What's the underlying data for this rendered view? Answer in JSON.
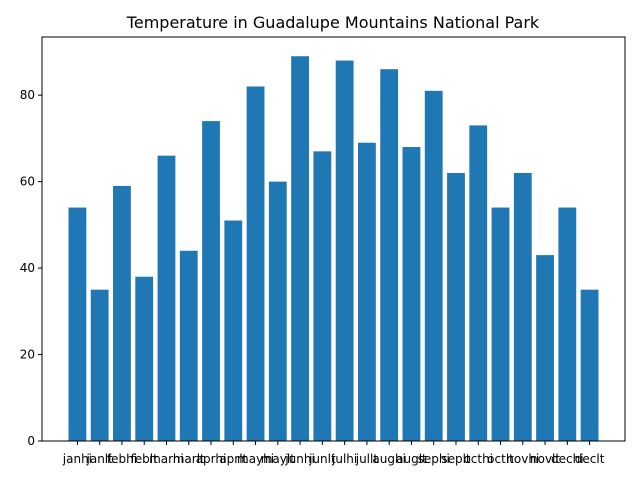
{
  "chart_data": {
    "type": "bar",
    "title": "Temperature in Guadalupe Mountains National Park",
    "xlabel": "",
    "ylabel": "",
    "categories": [
      "janhi",
      "janlt",
      "febhi",
      "feblt",
      "marhi",
      "marlt",
      "aprhi",
      "aprlt",
      "mayhi",
      "maylt",
      "junhi",
      "junlt",
      "julhi",
      "jullt",
      "aughi",
      "auglt",
      "sephi",
      "seplt",
      "octhi",
      "octlt",
      "novhi",
      "novlt",
      "dechi",
      "declt"
    ],
    "values": [
      54,
      35,
      59,
      38,
      66,
      44,
      74,
      51,
      82,
      60,
      89,
      67,
      88,
      69,
      86,
      68,
      81,
      62,
      73,
      54,
      62,
      43,
      54,
      35
    ],
    "ylim": [
      0,
      93.45
    ],
    "yticks": [
      0,
      20,
      40,
      60,
      80
    ],
    "bar_color": "#1f77b4",
    "grid": false,
    "legend": "none"
  }
}
